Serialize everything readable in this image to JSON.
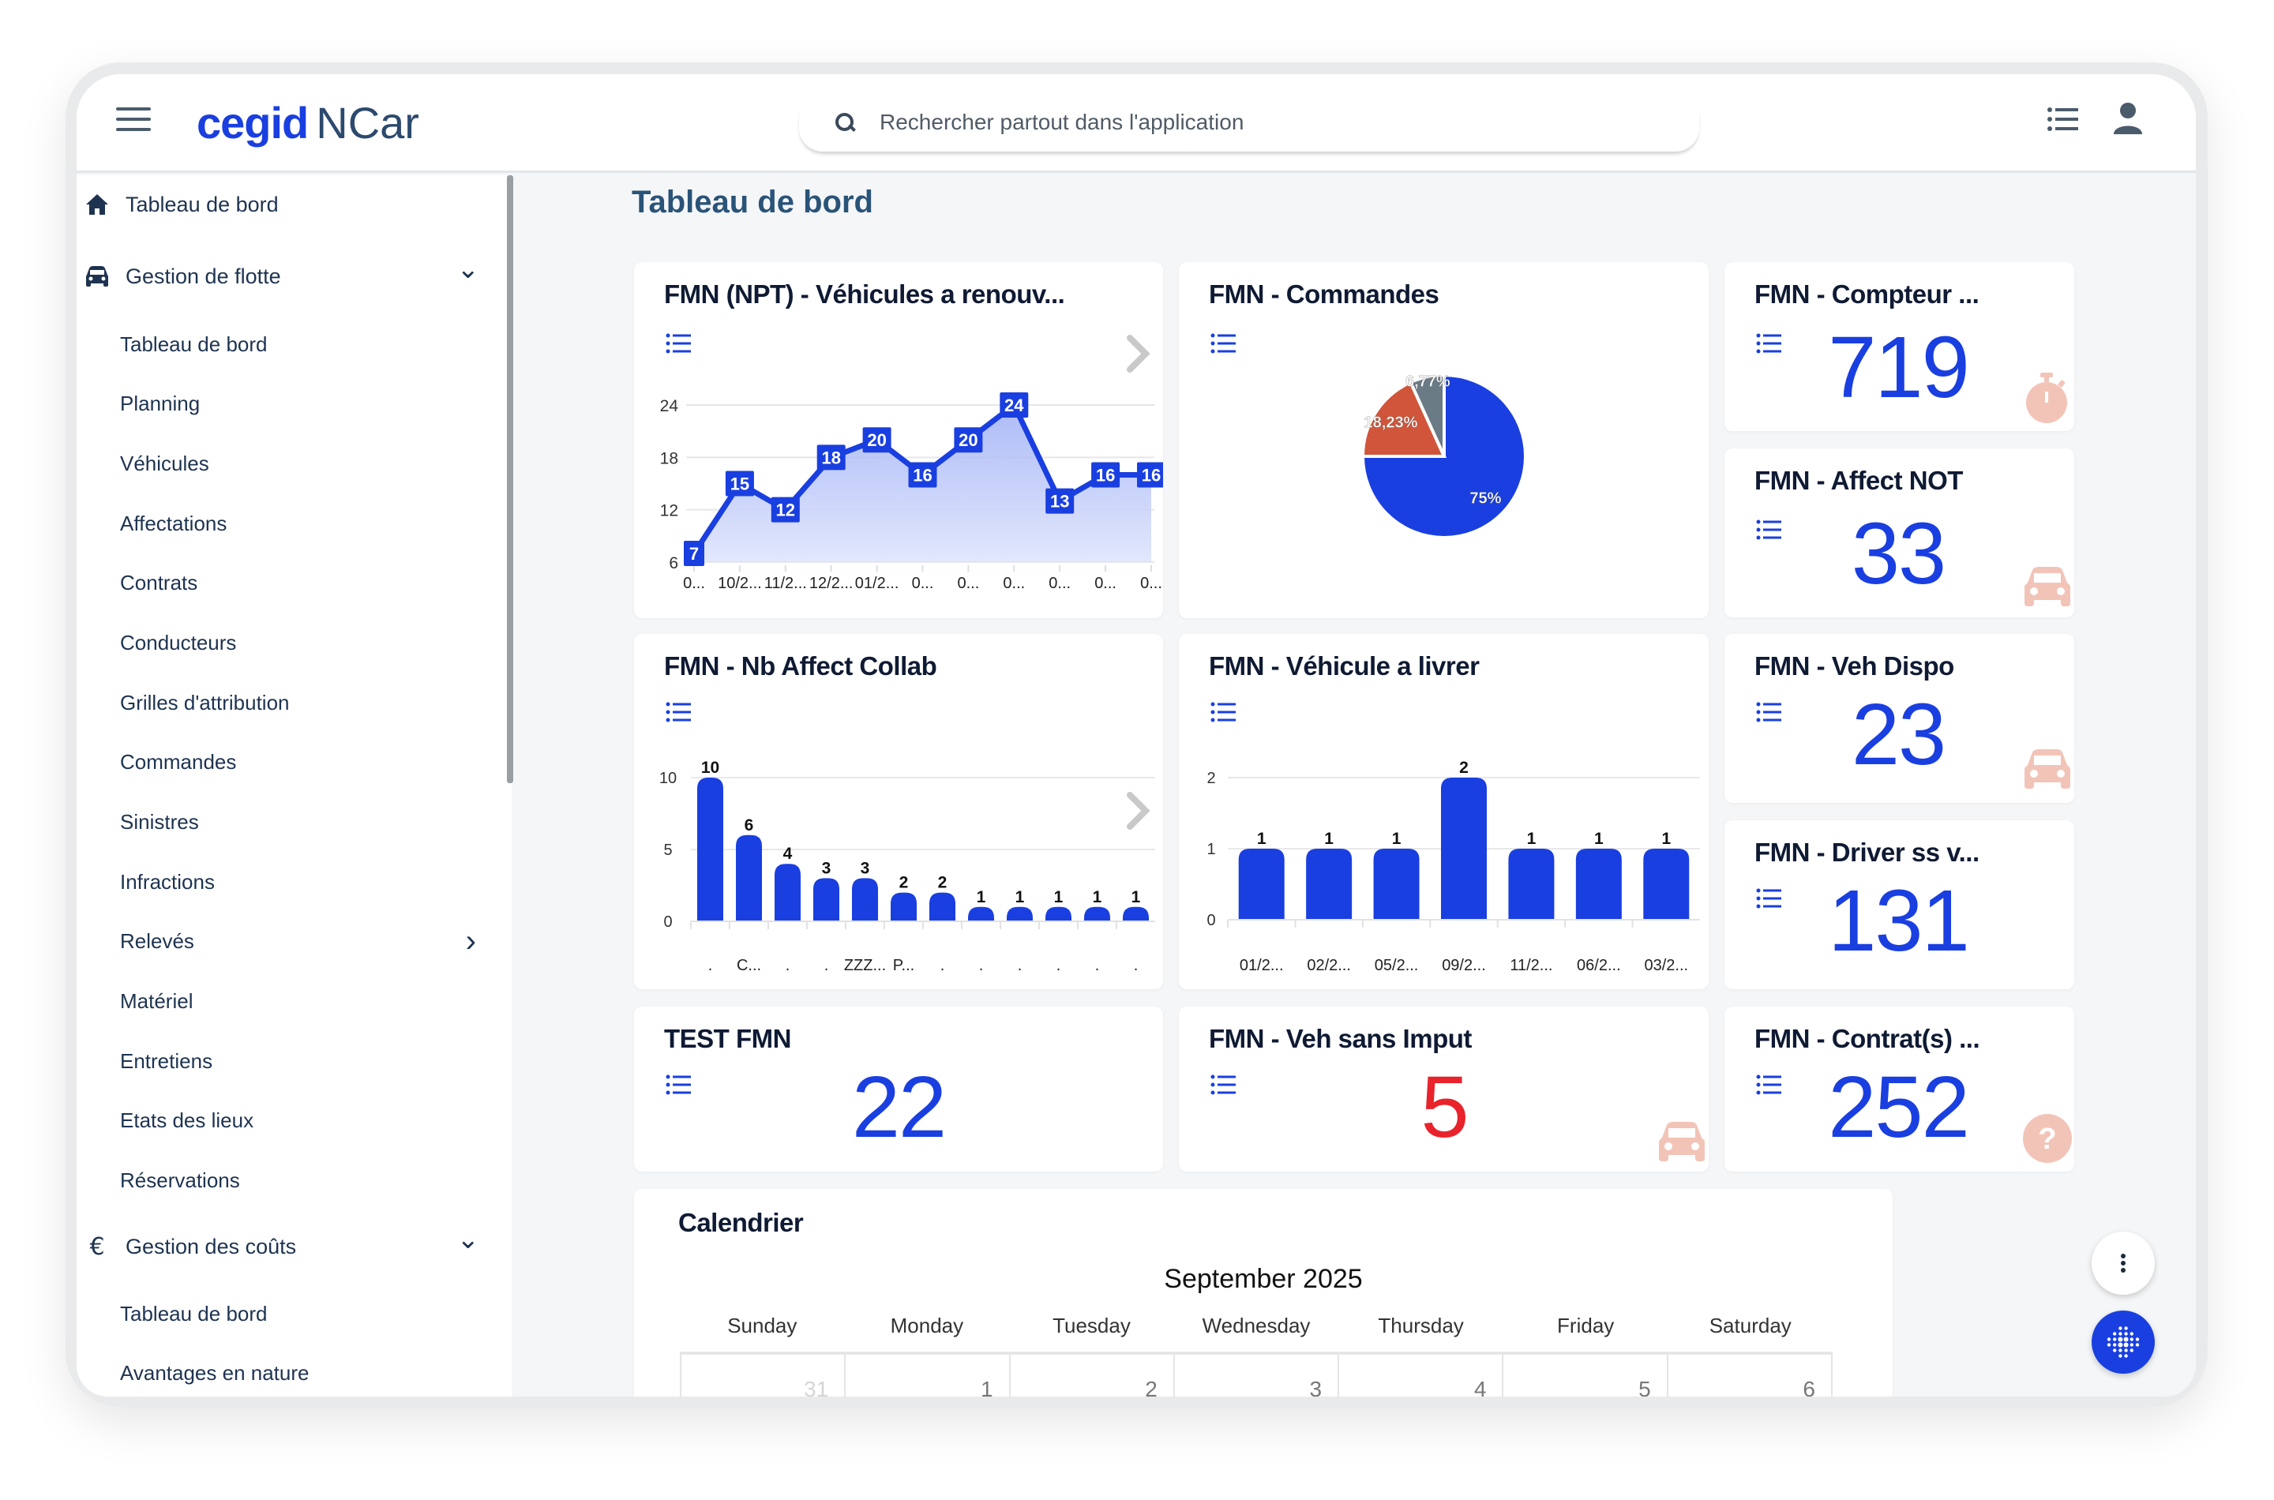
{
  "app": {
    "brand": "cegid",
    "product": "NCar"
  },
  "header": {
    "search_placeholder": "Rechercher partout dans l'application",
    "icons": [
      "menu-icon",
      "list-icon",
      "user-icon"
    ]
  },
  "sidebar": {
    "items": [
      {
        "label": "Tableau de bord",
        "level": "top",
        "icon": "home-icon"
      },
      {
        "label": "Gestion de flotte",
        "level": "top",
        "icon": "car-icon",
        "expanded": true
      },
      {
        "label": "Tableau de bord",
        "level": "sub"
      },
      {
        "label": "Planning",
        "level": "sub"
      },
      {
        "label": "Véhicules",
        "level": "sub"
      },
      {
        "label": "Affectations",
        "level": "sub"
      },
      {
        "label": "Contrats",
        "level": "sub"
      },
      {
        "label": "Conducteurs",
        "level": "sub"
      },
      {
        "label": "Grilles d'attribution",
        "level": "sub"
      },
      {
        "label": "Commandes",
        "level": "sub"
      },
      {
        "label": "Sinistres",
        "level": "sub"
      },
      {
        "label": "Infractions",
        "level": "sub"
      },
      {
        "label": "Relevés",
        "level": "sub",
        "has_children": true
      },
      {
        "label": "Matériel",
        "level": "sub"
      },
      {
        "label": "Entretiens",
        "level": "sub"
      },
      {
        "label": "Etats des lieux",
        "level": "sub"
      },
      {
        "label": "Réservations",
        "level": "sub"
      },
      {
        "label": "Gestion des coûts",
        "level": "top",
        "icon": "euro-icon",
        "expanded": true
      },
      {
        "label": "Tableau de bord",
        "level": "sub"
      },
      {
        "label": "Avantages en nature",
        "level": "sub"
      }
    ]
  },
  "main": {
    "title": "Tableau de bord",
    "kpis": {
      "compteur": {
        "title": "FMN - Compteur ...",
        "value": "719",
        "icon": "stopwatch-icon"
      },
      "affect_not": {
        "title": "FMN - Affect NOT",
        "value": "33",
        "icon": "car-icon"
      },
      "veh_dispo": {
        "title": "FMN - Veh Dispo",
        "value": "23",
        "icon": "car-icon"
      },
      "driver": {
        "title": "FMN - Driver ss v...",
        "value": "131"
      },
      "test": {
        "title": "TEST FMN",
        "value": "22"
      },
      "sans_imput": {
        "title": "FMN - Veh sans Imput",
        "value": "5",
        "icon": "car-icon"
      },
      "contrats": {
        "title": "FMN - Contrat(s) ...",
        "value": "252",
        "icon": "question-icon"
      }
    },
    "calendar": {
      "title": "Calendrier",
      "month": "September 2025",
      "weekdays": [
        "Sunday",
        "Monday",
        "Tuesday",
        "Wednesday",
        "Thursday",
        "Friday",
        "Saturday"
      ],
      "first_week": [
        "31",
        "1",
        "2",
        "3",
        "4",
        "5",
        "6"
      ]
    }
  },
  "colors": {
    "accent": "#1a3fe0",
    "kpi_alert": "#e8232c",
    "icon_muted": "#f2c4b8",
    "pie_orange": "#d0553a",
    "pie_grey": "#6b7b86"
  },
  "chart_data": [
    {
      "id": "renouv",
      "type": "area",
      "title": "FMN (NPT) - Véhicules a renouv...",
      "x": [
        "0...",
        "10/2...",
        "11/2...",
        "12/2...",
        "01/2...",
        "0...",
        "0...",
        "0...",
        "0...",
        "0...",
        "0..."
      ],
      "values": [
        7,
        15,
        12,
        18,
        20,
        16,
        20,
        24,
        13,
        16,
        16
      ],
      "yticks": [
        6,
        12,
        18,
        24
      ],
      "ylim": [
        6,
        24
      ],
      "grid": true,
      "data_labels": true
    },
    {
      "id": "commandes",
      "type": "pie",
      "title": "FMN - Commandes",
      "slices": [
        {
          "label": "75%",
          "value": 75,
          "color": "#1a3fe0"
        },
        {
          "label": "18,23%",
          "value": 18.23,
          "color": "#d0553a"
        },
        {
          "label": "6,77%",
          "value": 6.77,
          "color": "#6b7b86"
        }
      ]
    },
    {
      "id": "collab",
      "type": "bar",
      "title": "FMN - Nb Affect Collab",
      "categories": [
        ".",
        "C...",
        ".",
        ".",
        "ZZZ...",
        "P...",
        ".",
        ".",
        ".",
        ".",
        ".",
        "."
      ],
      "values": [
        10,
        6,
        4,
        3,
        3,
        2,
        2,
        1,
        1,
        1,
        1,
        1
      ],
      "yticks": [
        0,
        5,
        10
      ],
      "ylim": [
        0,
        10
      ],
      "grid": true
    },
    {
      "id": "livrer",
      "type": "bar",
      "title": "FMN - Véhicule a livrer",
      "categories": [
        "01/2...",
        "02/2...",
        "05/2...",
        "09/2...",
        "11/2...",
        "06/2...",
        "03/2..."
      ],
      "values": [
        1,
        1,
        1,
        2,
        1,
        1,
        1
      ],
      "yticks": [
        0,
        1,
        2
      ],
      "ylim": [
        0,
        2
      ],
      "grid": true
    }
  ]
}
